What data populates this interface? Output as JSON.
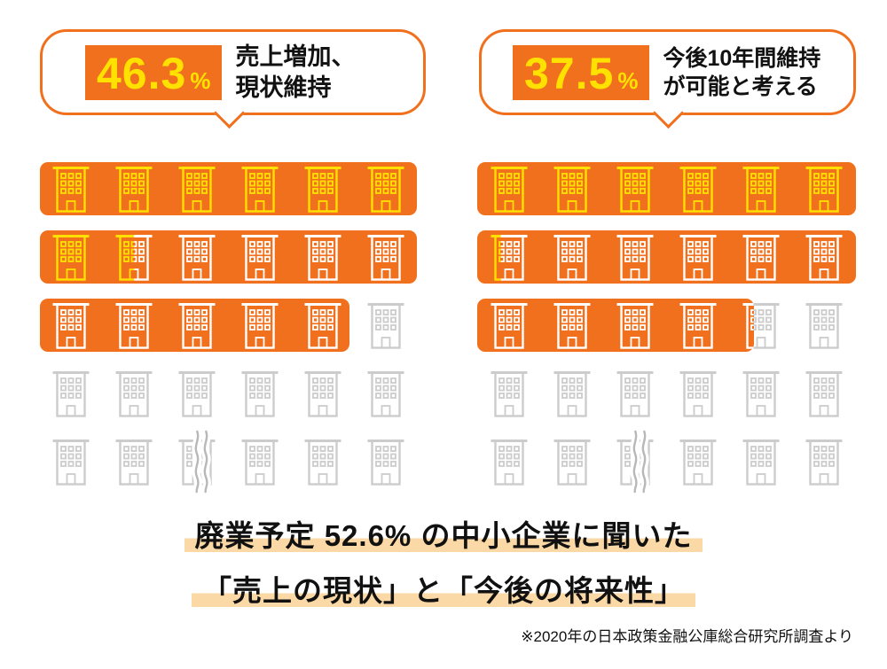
{
  "colors": {
    "orange": "#f1701e",
    "yellow": "#ffe100",
    "white": "#ffffff",
    "gray": "#cccccc",
    "break_gray": "#b8b8b8",
    "highlight": "#fbd9a6",
    "text": "#111111"
  },
  "chart_data": {
    "type": "pictogram",
    "icon": "building",
    "columns": 6,
    "rows_per_panel": 5,
    "truncated_rows_marker": true,
    "title_lines": [
      "廃業予定 52.6% の中小企業に聞いた",
      "「売上の現状」と「今後の将来性」"
    ],
    "source": "※2020年の日本政策金融公庫総合研究所調査より",
    "panels": [
      {
        "value": 46.3,
        "value_label": "46.3",
        "percent_sign": "%",
        "label_lines": [
          "売上増加、",
          "現状維持"
        ],
        "rows": [
          {
            "bg_fraction": 1.0,
            "cells": [
              "yellow",
              "yellow",
              "yellow",
              "yellow",
              "yellow",
              "yellow"
            ]
          },
          {
            "bg_fraction": 1.0,
            "cells": [
              "yellow",
              "yellow/white:0.5",
              "white",
              "white",
              "white",
              "white"
            ]
          },
          {
            "bg_fraction": 0.82,
            "cells": [
              "white",
              "white",
              "white",
              "white",
              "white",
              "gray"
            ]
          },
          {
            "bg_fraction": 0,
            "cells": [
              "gray",
              "gray",
              "gray",
              "gray",
              "gray",
              "gray"
            ]
          },
          {
            "bg_fraction": 0,
            "cells": [
              "gray",
              "gray",
              "gray",
              "gray",
              "gray",
              "gray"
            ],
            "break_marker": true
          }
        ]
      },
      {
        "value": 37.5,
        "value_label": "37.5",
        "percent_sign": "%",
        "label_lines": [
          "今後10年間維持",
          "が可能と考える"
        ],
        "rows": [
          {
            "bg_fraction": 1.0,
            "cells": [
              "yellow",
              "yellow",
              "yellow",
              "yellow",
              "yellow",
              "yellow"
            ]
          },
          {
            "bg_fraction": 1.0,
            "cells": [
              "yellow/white:0.3",
              "white",
              "white",
              "white",
              "white",
              "white"
            ]
          },
          {
            "bg_fraction": 0.73,
            "cells": [
              "white",
              "white",
              "white",
              "white",
              "white/gray:0.3",
              "gray"
            ]
          },
          {
            "bg_fraction": 0,
            "cells": [
              "gray",
              "gray",
              "gray",
              "gray",
              "gray",
              "gray"
            ]
          },
          {
            "bg_fraction": 0,
            "cells": [
              "gray",
              "gray",
              "gray",
              "gray",
              "gray",
              "gray"
            ],
            "break_marker": true
          }
        ]
      }
    ]
  }
}
